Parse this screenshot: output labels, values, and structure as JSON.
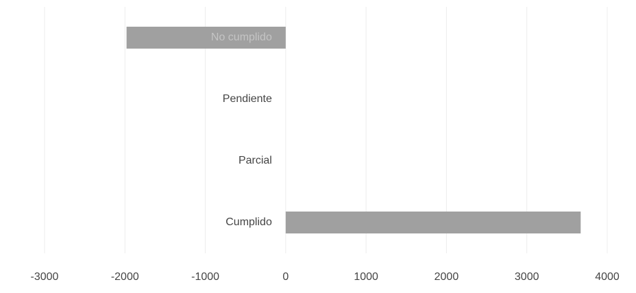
{
  "chart_data": {
    "type": "bar",
    "orientation": "horizontal",
    "categories": [
      "No cumplido",
      "Pendiente",
      "Parcial",
      "Cumplido"
    ],
    "values": [
      -1980,
      0,
      0,
      3670
    ],
    "color": "#a0a0a0",
    "xlim": [
      -3000,
      4000
    ],
    "xticks": [
      -3000,
      -2000,
      -1000,
      0,
      1000,
      2000,
      3000,
      4000
    ],
    "grid": true
  }
}
